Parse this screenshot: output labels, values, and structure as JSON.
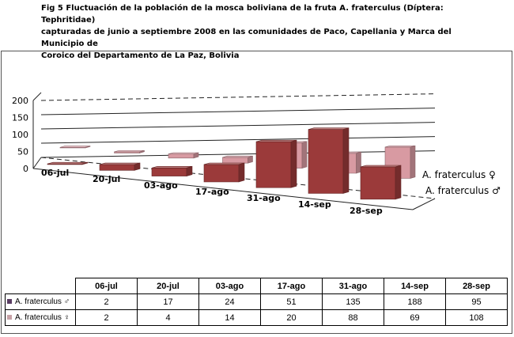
{
  "caption": {
    "line1": "Fig 5 Fluctuación de la población de la mosca boliviana de la fruta A. fraterculus (Díptera: Tephritidae)",
    "line2": "capturadas de junio a septiembre 2008 en las comunidades de Paco, Capellania y Marca del Municipio de",
    "line3": "Coroico del Departamento de La Paz, Bolivia"
  },
  "colors": {
    "male": "#9b3a3a",
    "female": "#d89aa2",
    "male_swatch": "#5a3d63",
    "female_swatch": "#c7a2a7"
  },
  "chart_data": {
    "type": "bar",
    "categories": [
      "06-jul",
      "20-jul",
      "03-ago",
      "17-ago",
      "31-ago",
      "14-sep",
      "28-sep"
    ],
    "series": [
      {
        "name": "A. fraterculus ♂",
        "values": [
          2,
          17,
          24,
          51,
          135,
          188,
          95
        ]
      },
      {
        "name": "A. fraterculus ♀",
        "values": [
          2,
          4,
          14,
          20,
          88,
          69,
          108
        ]
      }
    ],
    "ylim": [
      0,
      200
    ],
    "yticks": [
      "0",
      "50",
      "100",
      "150",
      "200"
    ],
    "grid": true,
    "legend": "right",
    "data_table": true
  }
}
